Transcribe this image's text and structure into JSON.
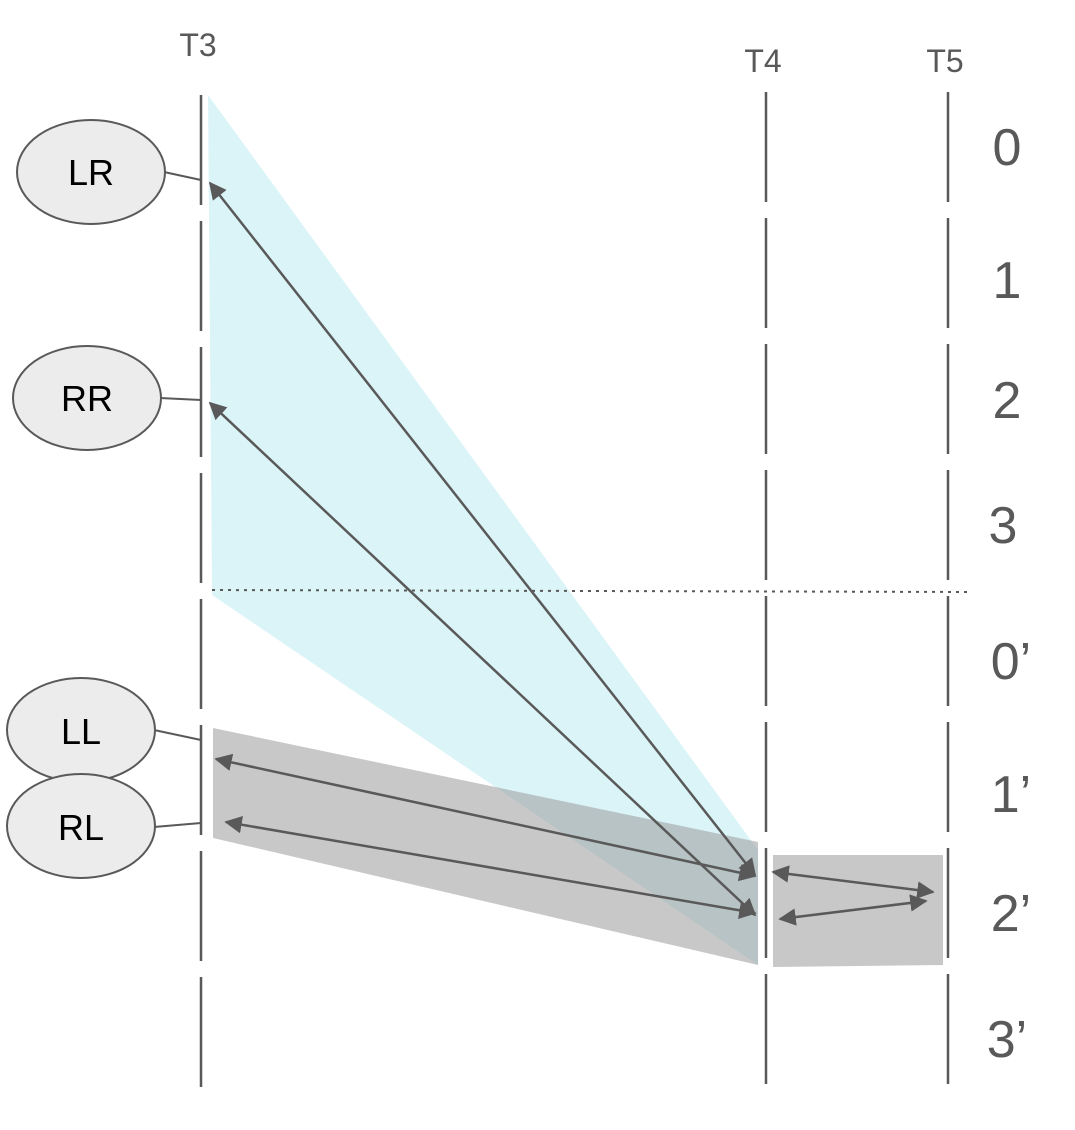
{
  "columns": [
    {
      "id": "T3",
      "label": "T3"
    },
    {
      "id": "T4",
      "label": "T4"
    },
    {
      "id": "T5",
      "label": "T5"
    }
  ],
  "rows": [
    "0",
    "1",
    "2",
    "3",
    "0’",
    "1’",
    "2’",
    "3’"
  ],
  "nodes": [
    {
      "id": "LR",
      "label": "LR"
    },
    {
      "id": "RR",
      "label": "RR"
    },
    {
      "id": "LL",
      "label": "LL"
    },
    {
      "id": "RL",
      "label": "RL"
    }
  ],
  "colors": {
    "line": "#595959",
    "node_fill": "#ececec",
    "node_stroke": "#595959",
    "cyan_region": "#c8eef4",
    "gray_region": "#aaaaaa"
  }
}
